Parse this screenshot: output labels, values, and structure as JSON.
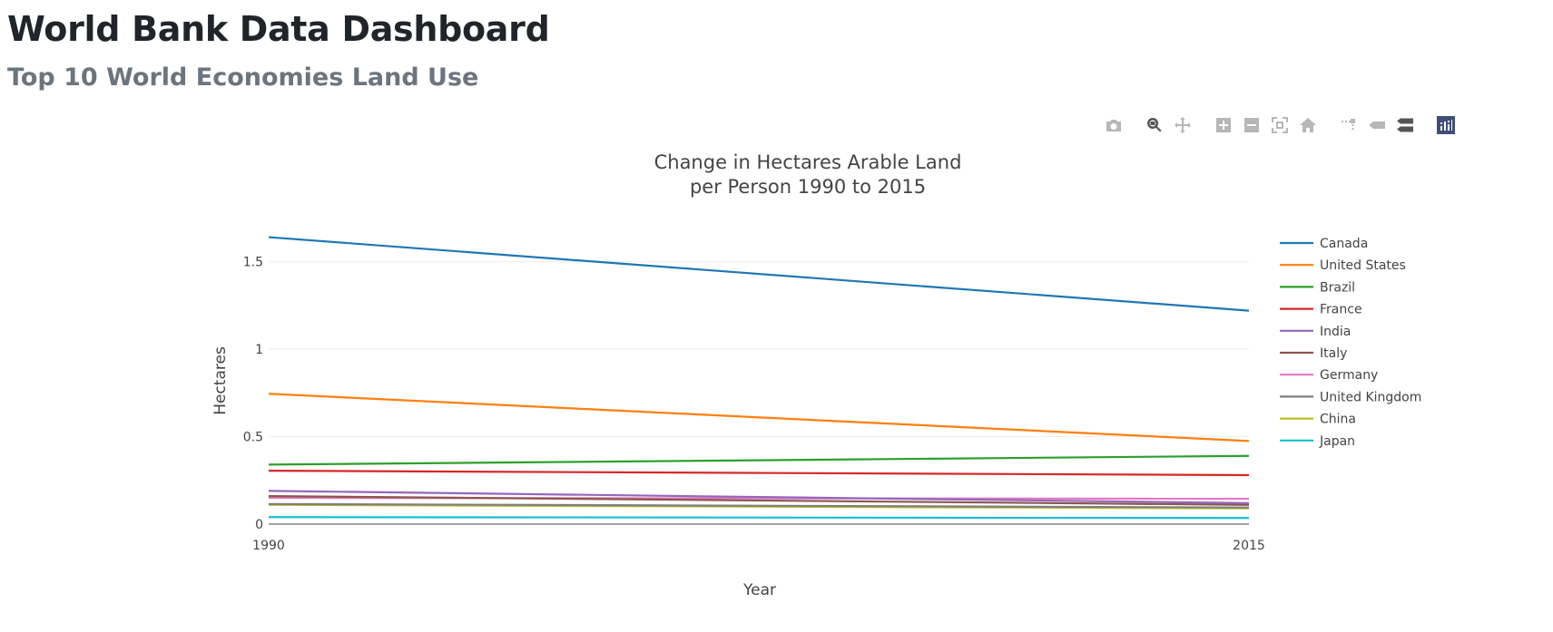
{
  "header": {
    "title": "World Bank Data Dashboard",
    "subtitle": "Top 10 World Economies Land Use"
  },
  "modebar": {
    "buttons": [
      {
        "name": "camera-icon",
        "label": "Download plot as a png"
      },
      {
        "name": "zoom-icon",
        "label": "Zoom",
        "active": true
      },
      {
        "name": "pan-icon",
        "label": "Pan"
      },
      {
        "name": "zoom-in-icon",
        "label": "Zoom in"
      },
      {
        "name": "zoom-out-icon",
        "label": "Zoom out"
      },
      {
        "name": "autoscale-icon",
        "label": "Autoscale"
      },
      {
        "name": "reset-axes-icon",
        "label": "Reset axes"
      },
      {
        "name": "spike-lines-icon",
        "label": "Toggle Spike Lines"
      },
      {
        "name": "hover-closest-icon",
        "label": "Show closest data on hover"
      },
      {
        "name": "hover-compare-icon",
        "label": "Compare data on hover"
      },
      {
        "name": "plotly-logo-icon",
        "label": "Produced with Plotly"
      }
    ]
  },
  "chart_data": {
    "type": "line",
    "title": "Change in Hectares Arable Land",
    "title_line2": "per Person 1990 to 2015",
    "xlabel": "Year",
    "ylabel": "Hectares",
    "x": [
      1990,
      2015
    ],
    "xlim": [
      1990,
      2015
    ],
    "ylim": [
      0,
      1.7
    ],
    "yticks": [
      0,
      0.5,
      1,
      1.5
    ],
    "ytick_labels": [
      "0",
      "0.5",
      "1",
      "1.5"
    ],
    "xticks": [
      1990,
      2015
    ],
    "xtick_labels": [
      "1990",
      "2015"
    ],
    "grid": true,
    "legend": "right",
    "series": [
      {
        "name": "Canada",
        "color": "#1f77b4",
        "values": [
          1.64,
          1.22
        ]
      },
      {
        "name": "United States",
        "color": "#ff7f0e",
        "values": [
          0.745,
          0.475
        ]
      },
      {
        "name": "Brazil",
        "color": "#2ca02c",
        "values": [
          0.34,
          0.39
        ]
      },
      {
        "name": "France",
        "color": "#d62728",
        "values": [
          0.305,
          0.28
        ]
      },
      {
        "name": "India",
        "color": "#9467bd",
        "values": [
          0.19,
          0.12
        ]
      },
      {
        "name": "Italy",
        "color": "#8c564b",
        "values": [
          0.16,
          0.11
        ]
      },
      {
        "name": "Germany",
        "color": "#e377c2",
        "values": [
          0.15,
          0.145
        ]
      },
      {
        "name": "United Kingdom",
        "color": "#7f7f7f",
        "values": [
          0.115,
          0.095
        ]
      },
      {
        "name": "China",
        "color": "#bcbd22",
        "values": [
          0.11,
          0.09
        ]
      },
      {
        "name": "Japan",
        "color": "#17becf",
        "values": [
          0.04,
          0.035
        ]
      }
    ]
  }
}
